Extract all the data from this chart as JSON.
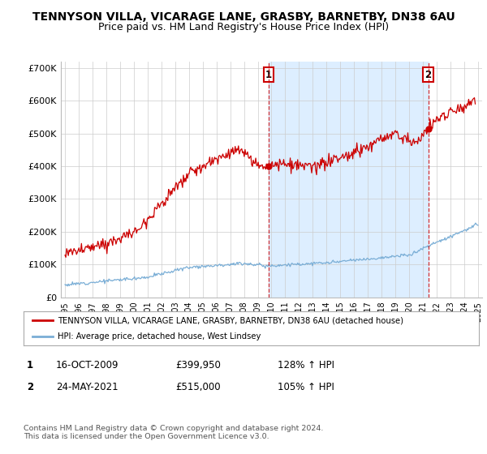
{
  "title": "TENNYSON VILLA, VICARAGE LANE, GRASBY, BARNETBY, DN38 6AU",
  "subtitle": "Price paid vs. HM Land Registry's House Price Index (HPI)",
  "title_fontsize": 10,
  "subtitle_fontsize": 9,
  "red_line_color": "#cc0000",
  "blue_line_color": "#7aaed6",
  "shade_color": "#ddeeff",
  "background_color": "#ffffff",
  "grid_color": "#cccccc",
  "ylim": [
    0,
    720000
  ],
  "yticks": [
    0,
    100000,
    200000,
    300000,
    400000,
    500000,
    600000,
    700000
  ],
  "ytick_labels": [
    "£0",
    "£100K",
    "£200K",
    "£300K",
    "£400K",
    "£500K",
    "£600K",
    "£700K"
  ],
  "xmin_year": 1995,
  "xmax_year": 2025,
  "xtick_years": [
    1995,
    1996,
    1997,
    1998,
    1999,
    2000,
    2001,
    2002,
    2003,
    2004,
    2005,
    2006,
    2007,
    2008,
    2009,
    2010,
    2011,
    2012,
    2013,
    2014,
    2015,
    2016,
    2017,
    2018,
    2019,
    2020,
    2021,
    2022,
    2023,
    2024,
    2025
  ],
  "sale1_x": 2009.79,
  "sale1_y": 399950,
  "sale1_label": "1",
  "sale2_x": 2021.38,
  "sale2_y": 515000,
  "sale2_label": "2",
  "legend_red_label": "TENNYSON VILLA, VICARAGE LANE, GRASBY, BARNETBY, DN38 6AU (detached house)",
  "legend_blue_label": "HPI: Average price, detached house, West Lindsey",
  "table_rows": [
    {
      "num": "1",
      "date": "16-OCT-2009",
      "price": "£399,950",
      "hpi": "128% ↑ HPI"
    },
    {
      "num": "2",
      "date": "24-MAY-2021",
      "price": "£515,000",
      "hpi": "105% ↑ HPI"
    }
  ],
  "footer": "Contains HM Land Registry data © Crown copyright and database right 2024.\nThis data is licensed under the Open Government Licence v3.0.",
  "vline1_x": 2009.79,
  "vline2_x": 2021.38
}
